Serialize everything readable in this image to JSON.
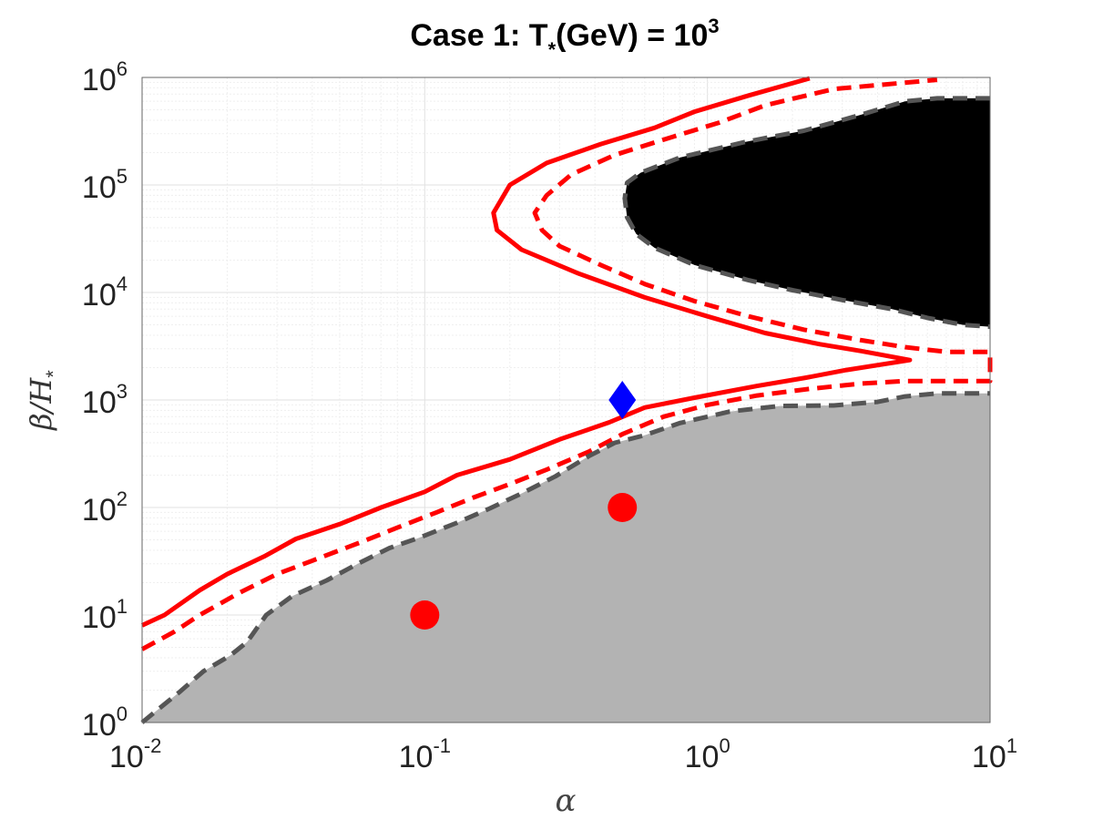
{
  "chart_data": {
    "type": "contour",
    "title": {
      "prefix": "Case 1: T",
      "sub": "*",
      "mid": "(GeV) = 10",
      "sup": "3"
    },
    "xlabel": "α",
    "ylabel": {
      "main": "β/H",
      "sub": "*"
    },
    "x_scale": "log",
    "y_scale": "log",
    "xlim": [
      0.01,
      10
    ],
    "ylim": [
      1,
      1000000
    ],
    "x_ticks": [
      {
        "base": "10",
        "exp": "-2",
        "value": 0.01
      },
      {
        "base": "10",
        "exp": "-1",
        "value": 0.1
      },
      {
        "base": "10",
        "exp": "0",
        "value": 1
      },
      {
        "base": "10",
        "exp": "1",
        "value": 10
      }
    ],
    "y_ticks": [
      {
        "base": "10",
        "exp": "0",
        "value": 1
      },
      {
        "base": "10",
        "exp": "1",
        "value": 10
      },
      {
        "base": "10",
        "exp": "2",
        "value": 100
      },
      {
        "base": "10",
        "exp": "3",
        "value": 1000
      },
      {
        "base": "10",
        "exp": "4",
        "value": 10000
      },
      {
        "base": "10",
        "exp": "5",
        "value": 100000
      },
      {
        "base": "10",
        "exp": "6",
        "value": 1000000
      }
    ],
    "grid": true,
    "colors": {
      "red": "#ff0000",
      "black_region": "#000000",
      "gray_region": "#b3b3b3",
      "dashed_gray": "#555555",
      "marker_diamond": "#0000ff"
    },
    "regions": [
      {
        "id": "gray-region",
        "fill": "#b3b3b3",
        "boundary": [
          [
            0.01,
            1.0
          ],
          [
            0.0115,
            1.35
          ],
          [
            0.0135,
            1.9
          ],
          [
            0.0165,
            3.0
          ],
          [
            0.0205,
            4.2
          ],
          [
            0.0235,
            5.6
          ],
          [
            0.0275,
            10
          ],
          [
            0.034,
            15
          ],
          [
            0.045,
            21
          ],
          [
            0.058,
            30
          ],
          [
            0.075,
            42
          ],
          [
            0.095,
            52
          ],
          [
            0.13,
            72
          ],
          [
            0.17,
            98
          ],
          [
            0.22,
            135
          ],
          [
            0.29,
            195
          ],
          [
            0.38,
            300
          ],
          [
            0.47,
            400
          ],
          [
            0.6,
            470
          ],
          [
            0.8,
            610
          ],
          [
            1.2,
            780
          ],
          [
            1.8,
            880
          ],
          [
            2.8,
            890
          ],
          [
            4.0,
            960
          ],
          [
            5.0,
            1080
          ],
          [
            6.5,
            1150
          ],
          [
            10,
            1150
          ]
        ]
      },
      {
        "id": "black-region",
        "fill": "#000000",
        "boundary": [
          [
            10,
            640000
          ],
          [
            6.5,
            640000
          ],
          [
            5.0,
            600000
          ],
          [
            3.5,
            450000
          ],
          [
            2.2,
            320000
          ],
          [
            1.35,
            250000
          ],
          [
            0.8,
            180000
          ],
          [
            0.58,
            130000
          ],
          [
            0.52,
            105000
          ],
          [
            0.51,
            75000
          ],
          [
            0.52,
            50000
          ],
          [
            0.56,
            35000
          ],
          [
            0.65,
            26000
          ],
          [
            0.9,
            18000
          ],
          [
            1.4,
            13000
          ],
          [
            2.0,
            10500
          ],
          [
            3.0,
            8500
          ],
          [
            4.5,
            7000
          ],
          [
            6.0,
            5800
          ],
          [
            8.0,
            5000
          ],
          [
            10,
            4800
          ]
        ]
      }
    ],
    "series": [
      {
        "id": "red-solid",
        "color": "#ff0000",
        "dash": "solid",
        "points": [
          [
            0.01,
            8.0
          ],
          [
            0.012,
            10
          ],
          [
            0.016,
            17
          ],
          [
            0.02,
            24
          ],
          [
            0.027,
            35
          ],
          [
            0.035,
            51
          ],
          [
            0.05,
            70
          ],
          [
            0.07,
            100
          ],
          [
            0.1,
            140
          ],
          [
            0.13,
            200
          ],
          [
            0.2,
            280
          ],
          [
            0.3,
            430
          ],
          [
            0.45,
            620
          ],
          [
            0.6,
            850
          ],
          [
            0.9,
            1050
          ],
          [
            1.5,
            1350
          ],
          [
            2.2,
            1600
          ],
          [
            3.1,
            1900
          ],
          [
            5.2,
            2350
          ],
          [
            3.5,
            2850
          ],
          [
            2.5,
            3300
          ],
          [
            1.6,
            4200
          ],
          [
            1.0,
            6000
          ],
          [
            0.6,
            9000
          ],
          [
            0.35,
            15000
          ],
          [
            0.22,
            25000
          ],
          [
            0.18,
            38000
          ],
          [
            0.175,
            55000
          ],
          [
            0.2,
            100000
          ],
          [
            0.27,
            160000
          ],
          [
            0.42,
            240000
          ],
          [
            0.65,
            340000
          ],
          [
            0.9,
            480000
          ],
          [
            1.4,
            680000
          ],
          [
            2.3,
            980000
          ]
        ]
      },
      {
        "id": "red-dashed",
        "color": "#ff0000",
        "dash": "dashed",
        "points": [
          [
            0.01,
            4.8
          ],
          [
            0.013,
            7
          ],
          [
            0.016,
            10
          ],
          [
            0.022,
            16
          ],
          [
            0.03,
            24
          ],
          [
            0.04,
            32
          ],
          [
            0.06,
            48
          ],
          [
            0.08,
            65
          ],
          [
            0.11,
            90
          ],
          [
            0.15,
            125
          ],
          [
            0.2,
            165
          ],
          [
            0.27,
            225
          ],
          [
            0.38,
            330
          ],
          [
            0.5,
            480
          ],
          [
            0.7,
            700
          ],
          [
            1.0,
            900
          ],
          [
            1.5,
            1100
          ],
          [
            2.3,
            1270
          ],
          [
            3.5,
            1420
          ],
          [
            5.0,
            1500
          ],
          [
            10,
            1500
          ],
          [
            10,
            2800
          ],
          [
            7,
            2800
          ],
          [
            5,
            3100
          ],
          [
            3.5,
            3600
          ],
          [
            2.2,
            4500
          ],
          [
            1.4,
            6000
          ],
          [
            0.9,
            8300
          ],
          [
            0.6,
            12000
          ],
          [
            0.42,
            18000
          ],
          [
            0.3,
            27000
          ],
          [
            0.26,
            38000
          ],
          [
            0.245,
            55000
          ],
          [
            0.27,
            80000
          ],
          [
            0.33,
            125000
          ],
          [
            0.47,
            190000
          ],
          [
            0.72,
            270000
          ],
          [
            1.1,
            380000
          ],
          [
            1.6,
            550000
          ],
          [
            2.8,
            780000
          ],
          [
            6.5,
            950000
          ]
        ]
      },
      {
        "id": "gray-dashed-lower",
        "color": "#555555",
        "dash": "dashed",
        "points": [
          [
            0.01,
            1.0
          ],
          [
            0.0115,
            1.35
          ],
          [
            0.0135,
            1.9
          ],
          [
            0.0165,
            3.0
          ],
          [
            0.0205,
            4.2
          ],
          [
            0.0235,
            5.6
          ],
          [
            0.0275,
            10
          ],
          [
            0.034,
            15
          ],
          [
            0.045,
            21
          ],
          [
            0.058,
            30
          ],
          [
            0.075,
            42
          ],
          [
            0.095,
            52
          ],
          [
            0.13,
            72
          ],
          [
            0.17,
            98
          ],
          [
            0.22,
            135
          ],
          [
            0.29,
            195
          ],
          [
            0.38,
            300
          ],
          [
            0.47,
            400
          ],
          [
            0.6,
            470
          ],
          [
            0.8,
            610
          ],
          [
            1.2,
            780
          ],
          [
            1.8,
            880
          ],
          [
            2.8,
            890
          ],
          [
            4.0,
            960
          ],
          [
            5.0,
            1080
          ],
          [
            6.5,
            1150
          ],
          [
            10,
            1150
          ]
        ]
      },
      {
        "id": "gray-dashed-upper",
        "color": "#555555",
        "dash": "dashed",
        "points": [
          [
            10,
            640000
          ],
          [
            6.5,
            640000
          ],
          [
            5.0,
            600000
          ],
          [
            3.5,
            450000
          ],
          [
            2.2,
            320000
          ],
          [
            1.35,
            250000
          ],
          [
            0.8,
            180000
          ],
          [
            0.58,
            130000
          ],
          [
            0.52,
            105000
          ],
          [
            0.51,
            75000
          ],
          [
            0.52,
            50000
          ],
          [
            0.56,
            35000
          ],
          [
            0.65,
            26000
          ],
          [
            0.9,
            18000
          ],
          [
            1.4,
            13000
          ],
          [
            2.0,
            10500
          ],
          [
            3.0,
            8500
          ],
          [
            4.5,
            7000
          ],
          [
            6.0,
            5800
          ],
          [
            8.0,
            5000
          ],
          [
            10,
            4800
          ]
        ]
      }
    ],
    "markers": [
      {
        "id": "red-dot-1",
        "shape": "circle",
        "color": "#ff0000",
        "x": 0.1,
        "y": 10
      },
      {
        "id": "red-dot-2",
        "shape": "circle",
        "color": "#ff0000",
        "x": 0.5,
        "y": 100
      },
      {
        "id": "blue-diamond",
        "shape": "diamond",
        "color": "#0000ff",
        "x": 0.5,
        "y": 1000
      }
    ]
  }
}
